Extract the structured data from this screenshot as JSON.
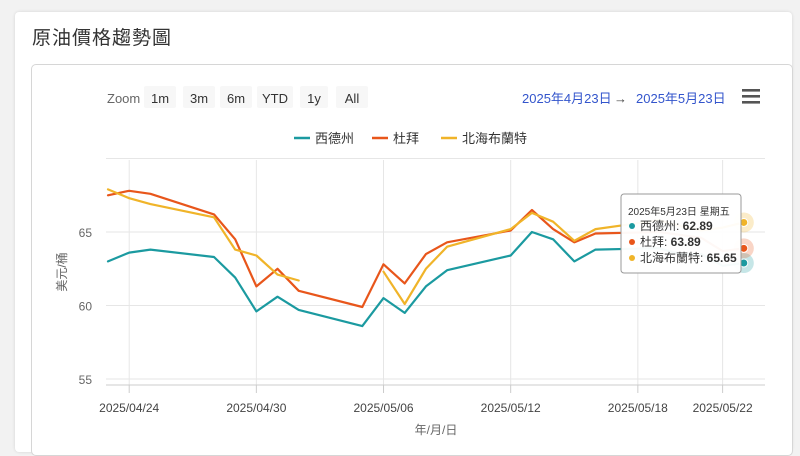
{
  "page": {
    "title": "原油價格趨勢圖"
  },
  "toolbar": {
    "zoom_label": "Zoom",
    "zoom_buttons": [
      "1m",
      "3m",
      "6m",
      "YTD",
      "1y",
      "All"
    ],
    "range_from": "2025年4月23日",
    "range_arrow": "→",
    "range_to": "2025年5月23日",
    "menu_icon": "hamburger-menu-icon"
  },
  "colors": {
    "wti": "#1b9aa0",
    "dubai": "#e8561b",
    "brent": "#f0b429",
    "range": "#3355cc"
  },
  "chart_data": {
    "type": "line",
    "xlabel": "年/月/日",
    "ylabel": "美元/桶",
    "ylim": [
      55,
      70
    ],
    "yticks": [
      55,
      60,
      65
    ],
    "x": [
      "2025/04/23",
      "2025/04/24",
      "2025/04/25",
      "2025/04/28",
      "2025/04/29",
      "2025/04/30",
      "2025/05/01",
      "2025/05/02",
      "2025/05/05",
      "2025/05/06",
      "2025/05/07",
      "2025/05/08",
      "2025/05/09",
      "2025/05/12",
      "2025/05/13",
      "2025/05/14",
      "2025/05/15",
      "2025/05/16",
      "2025/05/19",
      "2025/05/20",
      "2025/05/21",
      "2025/05/22",
      "2025/05/23"
    ],
    "xticks": [
      {
        "x": "2025/04/24",
        "label": "2025/04/24"
      },
      {
        "x": "2025/04/30",
        "label": "2025/04/30"
      },
      {
        "x": "2025/05/06",
        "label": "2025/05/06"
      },
      {
        "x": "2025/05/12",
        "label": "2025/05/12"
      },
      {
        "x": "2025/05/18",
        "label": "2025/05/18"
      },
      {
        "x": "2025/05/22",
        "label": "2025/05/22"
      }
    ],
    "series": [
      {
        "name": "西德州",
        "color": "#1b9aa0",
        "values": [
          63.0,
          63.6,
          63.8,
          63.3,
          61.9,
          59.6,
          60.6,
          59.7,
          58.6,
          60.5,
          59.5,
          61.3,
          62.4,
          63.4,
          65.0,
          64.5,
          63.0,
          63.8,
          63.9,
          63.5,
          63.5,
          62.7,
          62.89
        ]
      },
      {
        "name": "杜拜",
        "color": "#e8561b",
        "values": [
          67.5,
          67.8,
          67.6,
          66.2,
          64.5,
          61.3,
          62.5,
          61.0,
          59.9,
          62.8,
          61.5,
          63.5,
          64.3,
          65.1,
          66.5,
          65.2,
          64.3,
          64.9,
          65.0,
          64.8,
          64.6,
          63.7,
          63.89
        ]
      },
      {
        "name": "北海布蘭特",
        "color": "#f0b429",
        "values": [
          67.9,
          67.3,
          66.9,
          66.0,
          63.8,
          63.4,
          62.1,
          61.7,
          null,
          62.3,
          60.1,
          62.5,
          64.0,
          65.2,
          66.3,
          65.7,
          64.4,
          65.2,
          65.8,
          65.4,
          65.1,
          65.3,
          65.65
        ]
      }
    ],
    "legend_position": "top-center",
    "grid": true,
    "tooltip": {
      "header": "2025年5月23日 星期五",
      "rows": [
        {
          "name": "西德州",
          "value": "62.89",
          "color": "#1b9aa0"
        },
        {
          "name": "杜拜",
          "value": "63.89",
          "color": "#e8561b"
        },
        {
          "name": "北海布蘭特",
          "value": "65.65",
          "color": "#f0b429"
        }
      ]
    }
  }
}
